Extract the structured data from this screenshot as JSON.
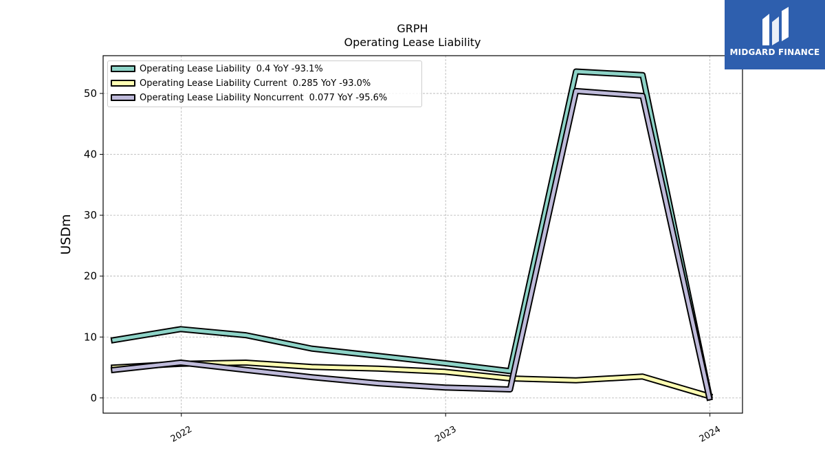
{
  "header": {
    "title": "GRPH",
    "subtitle": "Operating Lease Liability"
  },
  "logo": {
    "text": "MIDGARD FINANCE",
    "icon": "midgard-logo-icon",
    "bg_color": "#2e5fae"
  },
  "chart_data": {
    "type": "line",
    "title": "GRPH",
    "subtitle": "Operating Lease Liability",
    "xlabel": "",
    "ylabel": "USDm",
    "x": [
      "2021-09-30",
      "2021-12-31",
      "2022-03-31",
      "2022-06-30",
      "2022-09-30",
      "2022-12-31",
      "2023-03-31",
      "2023-06-30",
      "2023-09-30",
      "2023-12-31"
    ],
    "xticks": [
      "2022",
      "2023",
      "2024"
    ],
    "xtick_dates": [
      "2022-01-01",
      "2023-01-01",
      "2024-01-01"
    ],
    "xlim": [
      "2021-09-15",
      "2024-02-15"
    ],
    "ylim": [
      -2.5,
      56.2
    ],
    "yticks": [
      0,
      10,
      20,
      30,
      40,
      50
    ],
    "grid": true,
    "legend_position": "top-left",
    "series": [
      {
        "name": "Operating Lease Liability",
        "legend_value": "0.4",
        "legend_yoy": "YoY -93.1%",
        "color": "#8dd3c7",
        "values": [
          9.5,
          11.3,
          10.3,
          8.1,
          6.9,
          5.7,
          4.4,
          53.6,
          53.0,
          0.4
        ]
      },
      {
        "name": "Operating Lease Liability Current",
        "legend_value": "0.285",
        "legend_yoy": "YoY -93.0%",
        "color": "#ffffb3",
        "values": [
          5.0,
          5.6,
          5.8,
          5.1,
          4.8,
          4.3,
          3.2,
          2.9,
          3.5,
          0.285
        ]
      },
      {
        "name": "Operating Lease Liability Noncurrent",
        "legend_value": "0.077",
        "legend_yoy": "YoY -95.6%",
        "color": "#bebada",
        "values": [
          4.6,
          5.8,
          4.6,
          3.4,
          2.4,
          1.7,
          1.4,
          50.4,
          49.6,
          0.077
        ]
      }
    ]
  }
}
